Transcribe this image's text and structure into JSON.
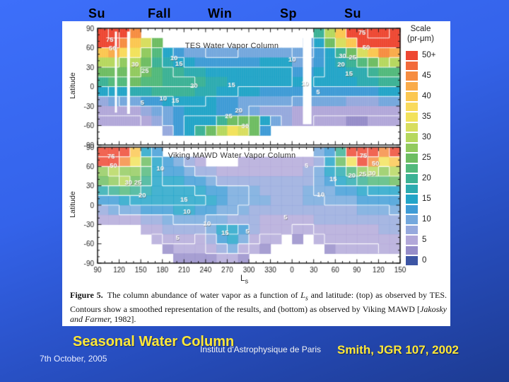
{
  "slide": {
    "season_labels": [
      "Su",
      "Fall",
      "Win",
      "Sp",
      "Su"
    ],
    "main_title": "Seasonal Water Column",
    "institute": "Institut d'Astrophysique de Paris",
    "reference": "Smith, JGR 107, 2002",
    "date": "7th October, 2005",
    "colors": {
      "background_top": "#3d6ffa",
      "background_bottom": "#1d3b92",
      "title_yellow": "#ffe838",
      "text_white": "#f2f2f2",
      "season_label_color": "#000000"
    }
  },
  "figure": {
    "ylabel": "Latitude",
    "xlabel_letter": "L",
    "xlabel_sub": "s",
    "caption": {
      "label": "Figure 5.",
      "body1": "The column abundance of water vapor as a function of ",
      "ls_letter": "L",
      "ls_sub": "s",
      "body2": " and latitude: (top) as observed by TES. Contours show a smoothed representation of the results, and (bottom) as observed by Viking MAWD [",
      "citation": "Jakosky and Farmer,",
      "body3": " 1982]."
    }
  },
  "scale": {
    "title_line1": "Scale",
    "title_line2": "(pr-μm)",
    "labels": [
      "50+",
      "45",
      "40",
      "35",
      "30",
      "25",
      "20",
      "15",
      "10",
      "5",
      "0"
    ],
    "value_max": 50,
    "value_step": 2.5,
    "colors": [
      "#ee4832",
      "#f26a3a",
      "#f68d41",
      "#f9ab4a",
      "#fbc751",
      "#f9da5c",
      "#f2e25b",
      "#d8de5e",
      "#b6d85e",
      "#92ca5e",
      "#6ebd62",
      "#52b97c",
      "#3cb295",
      "#2cabb0",
      "#23a5c8",
      "#3f9cd6",
      "#74a8dd",
      "#96a9dd",
      "#b2a8d9",
      "#968dc9",
      "#3d55a4"
    ]
  },
  "chart_data": [
    {
      "type": "heatmap",
      "title": "TES Water Vapor Column",
      "xlabel": "Ls",
      "ylabel": "Latitude",
      "units": "pr-um",
      "x_ticks": [
        90,
        120,
        150,
        180,
        210,
        240,
        270,
        300,
        330,
        0,
        30,
        60,
        90,
        120,
        150
      ],
      "y_ticks": [
        90,
        60,
        30,
        0,
        -30,
        -60,
        -90
      ],
      "ls_start": 90,
      "ls_span": 420,
      "cell_deg": 15,
      "texture": true,
      "soft": false,
      "contour_levels": [
        5,
        10,
        15,
        20,
        25,
        30,
        50,
        75
      ],
      "values": [
        [
          70,
          75,
          55,
          45,
          null,
          null,
          null,
          null,
          null,
          null,
          null,
          null,
          null,
          null,
          null,
          null,
          null,
          null,
          null,
          null,
          20,
          30,
          40,
          55,
          70,
          75,
          75,
          70
        ],
        [
          55,
          65,
          45,
          40,
          32,
          25,
          null,
          null,
          null,
          null,
          null,
          null,
          null,
          null,
          null,
          null,
          null,
          null,
          null,
          10,
          16,
          24,
          32,
          40,
          50,
          60,
          60,
          55
        ],
        [
          40,
          42,
          38,
          34,
          28,
          22,
          16,
          13,
          11,
          10,
          9,
          9,
          9,
          10,
          10,
          11,
          11,
          11,
          9,
          9,
          12,
          16,
          20,
          26,
          32,
          40,
          44,
          42
        ],
        [
          30,
          30,
          28,
          29,
          25,
          20,
          17,
          15,
          14,
          13,
          12,
          12,
          12,
          13,
          13,
          14,
          14,
          14,
          11,
          11,
          13,
          15,
          17,
          19,
          22,
          26,
          30,
          29
        ],
        [
          25,
          26,
          26,
          27,
          24,
          22,
          20,
          19,
          18,
          17,
          16,
          16,
          15,
          15,
          15,
          15,
          15,
          15,
          13,
          13,
          14,
          15,
          16,
          17,
          18,
          20,
          22,
          22
        ],
        [
          20,
          22,
          23,
          24,
          23,
          22,
          21,
          20,
          20,
          19,
          18,
          17,
          16,
          16,
          15,
          15,
          15,
          15,
          14,
          14,
          15,
          15,
          16,
          16,
          17,
          18,
          19,
          19
        ],
        [
          14,
          15,
          16,
          17,
          18,
          19,
          19,
          19,
          19,
          18,
          17,
          16,
          15,
          14,
          14,
          13,
          13,
          13,
          12,
          12,
          13,
          13,
          13,
          13,
          13,
          13,
          14,
          14
        ],
        [
          8,
          9,
          10,
          11,
          12,
          13,
          14,
          15,
          15,
          15,
          14,
          13,
          12,
          11,
          10,
          10,
          10,
          10,
          9,
          9,
          9,
          9,
          9,
          8,
          8,
          8,
          9,
          9
        ],
        [
          5,
          5,
          5,
          6,
          7,
          9,
          11,
          13,
          14,
          14,
          14,
          13,
          12,
          11,
          9,
          8,
          7,
          7,
          6,
          6,
          6,
          6,
          5,
          5,
          5,
          5,
          6,
          6
        ],
        [
          4,
          4,
          4,
          4,
          5,
          7,
          10,
          13,
          15,
          15,
          16,
          20,
          24,
          26,
          24,
          16,
          10,
          8,
          5,
          5,
          4,
          4,
          4,
          3,
          3,
          4,
          4,
          4
        ],
        [
          null,
          null,
          null,
          null,
          null,
          null,
          8,
          12,
          16,
          20,
          25,
          30,
          34,
          32,
          24,
          12,
          null,
          null,
          null,
          null,
          null,
          null,
          null,
          null,
          null,
          null,
          null,
          null
        ],
        [
          null,
          null,
          null,
          null,
          null,
          null,
          null,
          null,
          null,
          null,
          null,
          null,
          null,
          null,
          null,
          null,
          null,
          null,
          null,
          null,
          null,
          null,
          null,
          null,
          null,
          null,
          null,
          null
        ]
      ],
      "gaps": [
        {
          "ls": 114,
          "w_deg": 3,
          "lat_top": 85,
          "lat_bot": -40
        },
        {
          "ls": 131,
          "w_deg": 4,
          "lat_top": 85,
          "lat_bot": -42
        },
        {
          "ls": 375,
          "w_deg": 12,
          "lat_top": 90,
          "lat_bot": -58
        }
      ],
      "contour_labels": [
        {
          "v": 75,
          "ls": 107,
          "lat": 73
        },
        {
          "v": 50,
          "ls": 111,
          "lat": 60
        },
        {
          "v": 30,
          "ls": 142,
          "lat": 34
        },
        {
          "v": 25,
          "ls": 156,
          "lat": 25
        },
        {
          "v": 10,
          "ls": 196,
          "lat": 44
        },
        {
          "v": 15,
          "ls": 203,
          "lat": 35
        },
        {
          "v": 20,
          "ls": 224,
          "lat": 2
        },
        {
          "v": 5,
          "ls": 152,
          "lat": -25
        },
        {
          "v": 10,
          "ls": 181,
          "lat": -18
        },
        {
          "v": 15,
          "ls": 198,
          "lat": -21
        },
        {
          "v": 15,
          "ls": 276,
          "lat": 3
        },
        {
          "v": 20,
          "ls": 286,
          "lat": -37
        },
        {
          "v": 25,
          "ls": 272,
          "lat": -45
        },
        {
          "v": 30,
          "ls": 295,
          "lat": -60
        },
        {
          "v": 10,
          "ls": 360,
          "lat": 42
        },
        {
          "v": 10,
          "ls": 378,
          "lat": 5
        },
        {
          "v": 5,
          "ls": 396,
          "lat": -8
        },
        {
          "v": 20,
          "ls": 428,
          "lat": 34
        },
        {
          "v": 30,
          "ls": 430,
          "lat": 48
        },
        {
          "v": 25,
          "ls": 444,
          "lat": 45
        },
        {
          "v": 15,
          "ls": 439,
          "lat": 20
        },
        {
          "v": 50,
          "ls": 463,
          "lat": 61
        },
        {
          "v": 75,
          "ls": 457,
          "lat": 84
        }
      ]
    },
    {
      "type": "heatmap",
      "title": "Viking MAWD Water Vapor Column",
      "xlabel": "Ls",
      "ylabel": "Latitude",
      "units": "pr-um",
      "x_ticks": [
        90,
        120,
        150,
        180,
        210,
        240,
        270,
        300,
        330,
        0,
        30,
        60,
        90,
        120,
        150
      ],
      "y_ticks": [
        90,
        60,
        30,
        0,
        -30,
        -60,
        -90
      ],
      "ls_start": 90,
      "ls_span": 420,
      "cell_deg": 15,
      "texture": false,
      "soft": true,
      "contour_levels": [
        5,
        10,
        15,
        20,
        25,
        30,
        50,
        75
      ],
      "values": [
        [
          75,
          75,
          50,
          40,
          15,
          12,
          null,
          null,
          null,
          null,
          null,
          null,
          null,
          null,
          null,
          null,
          null,
          null,
          null,
          null,
          10,
          12,
          20,
          60,
          75,
          60,
          45,
          50
        ],
        [
          55,
          60,
          45,
          35,
          25,
          15,
          12,
          10,
          8,
          6,
          null,
          null,
          null,
          5,
          5,
          6,
          5,
          5,
          5,
          6,
          8,
          15,
          25,
          35,
          50,
          45,
          35,
          40
        ],
        [
          28,
          30,
          28,
          28,
          22,
          15,
          12,
          12,
          10,
          8,
          8,
          6,
          6,
          6,
          6,
          6,
          6,
          6,
          6,
          8,
          10,
          14,
          18,
          22,
          28,
          30,
          28,
          30
        ],
        [
          25,
          28,
          30,
          25,
          20,
          16,
          14,
          14,
          13,
          12,
          10,
          8,
          8,
          8,
          8,
          8,
          7,
          7,
          7,
          8,
          10,
          12,
          15,
          18,
          20,
          22,
          22,
          24
        ],
        [
          18,
          20,
          22,
          20,
          18,
          16,
          15,
          15,
          15,
          14,
          13,
          12,
          10,
          10,
          9,
          8,
          8,
          8,
          8,
          9,
          10,
          11,
          12,
          13,
          14,
          15,
          16,
          16
        ],
        [
          12,
          13,
          14,
          15,
          15,
          15,
          16,
          16,
          16,
          15,
          14,
          12,
          11,
          10,
          9,
          9,
          8,
          8,
          8,
          9,
          9,
          10,
          10,
          11,
          12,
          12,
          13,
          13
        ],
        [
          8,
          9,
          10,
          11,
          12,
          13,
          13,
          14,
          14,
          13,
          12,
          11,
          10,
          9,
          8,
          7,
          7,
          7,
          7,
          7,
          8,
          8,
          8,
          8,
          9,
          9,
          9,
          10
        ],
        [
          6,
          6,
          6,
          6,
          7,
          8,
          9,
          10,
          10,
          10,
          9,
          9,
          8,
          8,
          7,
          6,
          6,
          6,
          6,
          6,
          7,
          7,
          7,
          7,
          7,
          8,
          8,
          8
        ],
        [
          null,
          null,
          null,
          null,
          5,
          6,
          7,
          8,
          8,
          8,
          10,
          14,
          15,
          12,
          8,
          6,
          5,
          5,
          4,
          4,
          5,
          6,
          6,
          6,
          6,
          6,
          7,
          7
        ],
        [
          null,
          null,
          null,
          null,
          null,
          4,
          5,
          5,
          5,
          4,
          8,
          12,
          14,
          10,
          6,
          4,
          4,
          null,
          2,
          null,
          4,
          5,
          5,
          5,
          5,
          5,
          6,
          6
        ],
        [
          null,
          null,
          null,
          null,
          null,
          null,
          3,
          4,
          4,
          4,
          5,
          8,
          10,
          6,
          4,
          3,
          null,
          null,
          null,
          null,
          null,
          3,
          4,
          4,
          4,
          4,
          5,
          5
        ],
        [
          null,
          null,
          null,
          null,
          null,
          null,
          null,
          3,
          3,
          3,
          3,
          4,
          4,
          3,
          null,
          null,
          null,
          null,
          null,
          null,
          null,
          null,
          null,
          null,
          null,
          null,
          null,
          null
        ]
      ],
      "gaps": [],
      "contour_labels": [
        {
          "v": 75,
          "ls": 109,
          "lat": 76
        },
        {
          "v": 50,
          "ls": 112,
          "lat": 62
        },
        {
          "v": 30,
          "ls": 133,
          "lat": 35
        },
        {
          "v": 25,
          "ls": 146,
          "lat": 35
        },
        {
          "v": 20,
          "ls": 152,
          "lat": 15
        },
        {
          "v": 10,
          "ls": 177,
          "lat": 57
        },
        {
          "v": 15,
          "ls": 210,
          "lat": 9
        },
        {
          "v": 10,
          "ls": 214,
          "lat": -10
        },
        {
          "v": 10,
          "ls": 242,
          "lat": -29
        },
        {
          "v": 5,
          "ls": 201,
          "lat": -51
        },
        {
          "v": 15,
          "ls": 267,
          "lat": -43
        },
        {
          "v": 5,
          "ls": 298,
          "lat": -41
        },
        {
          "v": 5,
          "ls": 380,
          "lat": 62
        },
        {
          "v": 5,
          "ls": 351,
          "lat": -19
        },
        {
          "v": 10,
          "ls": 400,
          "lat": 17
        },
        {
          "v": 15,
          "ls": 417,
          "lat": 41
        },
        {
          "v": 20,
          "ls": 443,
          "lat": 46
        },
        {
          "v": 25,
          "ls": 458,
          "lat": 48
        },
        {
          "v": 30,
          "ls": 471,
          "lat": 49
        },
        {
          "v": 50,
          "ls": 476,
          "lat": 65
        },
        {
          "v": 75,
          "ls": 459,
          "lat": 77
        }
      ]
    }
  ]
}
